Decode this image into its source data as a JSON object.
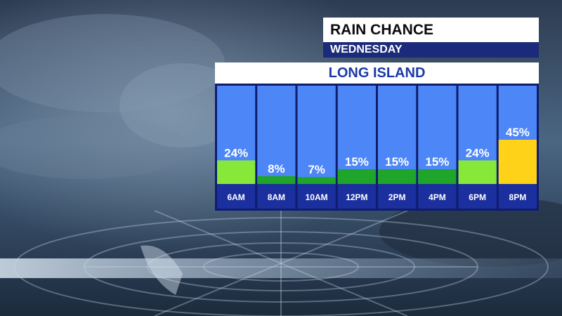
{
  "header": {
    "title": "RAIN CHANCE",
    "day": "WEDNESDAY",
    "region": "LONG ISLAND"
  },
  "colors": {
    "column_bg": "#4d86f7",
    "frame": "#0e1d6e",
    "low": "#1ea52a",
    "mid": "#87e83a",
    "high": "#ffd21a",
    "label_bg": "#1b2f9e",
    "text": "#ffffff"
  },
  "chart_data": {
    "type": "bar",
    "categories": [
      "6AM",
      "8AM",
      "10AM",
      "12PM",
      "2PM",
      "4PM",
      "6PM",
      "8PM"
    ],
    "values": [
      24,
      8,
      7,
      15,
      15,
      15,
      24,
      45
    ],
    "value_labels": [
      "24%",
      "8%",
      "7%",
      "15%",
      "15%",
      "15%",
      "24%",
      "45%"
    ],
    "ylim": [
      0,
      100
    ]
  }
}
